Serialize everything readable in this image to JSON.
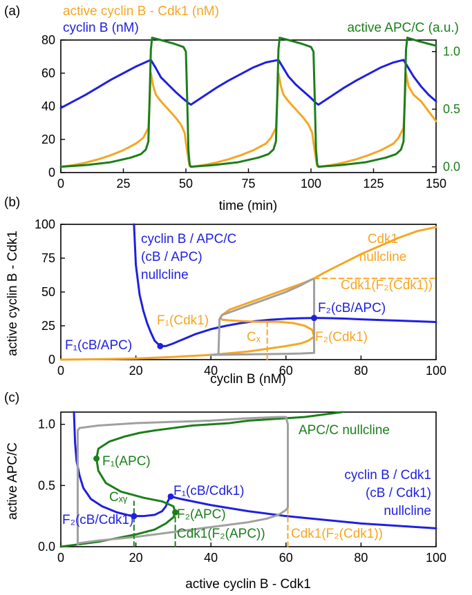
{
  "colors": {
    "blue": "#1f1fe0",
    "orange": "#f5a623",
    "green": "#1a7f1a",
    "gray": "#a0a0a0",
    "axis": "#000000"
  },
  "chart_data": [
    {
      "panel": "(a)",
      "type": "line",
      "xlabel": "time (min)",
      "ylabel_left": "",
      "ylabel_right": "",
      "xlim": [
        0,
        150
      ],
      "ylim_left": [
        0,
        80
      ],
      "ylim_right": [
        -0.05,
        1.1
      ],
      "xticks": [
        "0",
        "25",
        "50",
        "75",
        "100",
        "125",
        "150"
      ],
      "yticks_left": [
        "0",
        "20",
        "40",
        "60",
        "80"
      ],
      "yticks_right": [
        "0.0",
        "0.5",
        "1.0"
      ],
      "legend": [
        "active cyclin B - Cdk1 (nM)",
        "cyclin B (nM)",
        "active APC/C (a.u.)"
      ],
      "series": [
        {
          "name": "cyclin B (nM)",
          "axis": "left",
          "color": "blue",
          "x": [
            0,
            5,
            10,
            15,
            20,
            25,
            30,
            36,
            38,
            40,
            43,
            46,
            49,
            51,
            52,
            57,
            62,
            67,
            72,
            77,
            82,
            87,
            89,
            91,
            94,
            97,
            100,
            102,
            103,
            108,
            113,
            118,
            123,
            128,
            133,
            137,
            139,
            141,
            144,
            147,
            150
          ],
          "y": [
            39,
            43,
            47,
            51.5,
            56,
            60,
            64,
            68,
            63,
            57.5,
            53,
            48.5,
            44.5,
            42,
            41,
            46,
            51,
            55.5,
            59.5,
            63.5,
            66.5,
            68,
            63,
            58,
            53,
            49,
            45,
            42,
            41,
            46,
            51,
            55.5,
            59.5,
            63.5,
            66.5,
            68,
            63,
            58,
            52,
            47,
            43
          ]
        },
        {
          "name": "active cyclin B - Cdk1 (nM)",
          "axis": "left",
          "color": "orange",
          "x": [
            0,
            5,
            10,
            15,
            20,
            25,
            30,
            33,
            35,
            36,
            37,
            38,
            40,
            43,
            46,
            48,
            49.5,
            50,
            51,
            51.5,
            52,
            57,
            62,
            67,
            72,
            77,
            82,
            84,
            86,
            87,
            88,
            89,
            91,
            94,
            97,
            99,
            100.5,
            101,
            102,
            102.5,
            103,
            108,
            113,
            118,
            123,
            128,
            133,
            135,
            137,
            138,
            139,
            141,
            144,
            147,
            150
          ],
          "y": [
            3.5,
            4.5,
            6,
            8,
            10.5,
            13.5,
            17.5,
            21,
            27,
            60,
            52,
            47,
            43,
            38,
            33,
            29,
            24,
            18,
            8,
            4,
            3.5,
            4.5,
            6,
            8,
            10.5,
            13.5,
            17.5,
            21,
            27,
            60,
            52,
            47,
            43,
            38,
            33,
            29,
            24,
            18,
            8,
            4,
            3.5,
            4.5,
            6,
            8,
            10.5,
            13.5,
            17.5,
            21,
            27,
            60,
            52,
            47,
            43,
            37,
            31
          ]
        },
        {
          "name": "active APC/C (a.u.)",
          "axis": "right",
          "color": "green",
          "x": [
            0,
            10,
            20,
            28,
            32,
            34,
            35,
            35.5,
            36,
            36.5,
            40,
            45,
            49,
            50,
            50.5,
            51,
            51.5,
            52,
            61,
            71,
            79,
            83,
            85,
            86,
            86.5,
            87,
            87.5,
            91,
            96,
            100,
            101,
            101.5,
            102,
            102.5,
            103,
            112,
            122,
            130,
            134,
            136,
            137,
            137.5,
            138,
            138.5,
            143,
            150
          ],
          "y": [
            0.0,
            0.015,
            0.04,
            0.08,
            0.11,
            0.15,
            0.22,
            0.6,
            1.02,
            1.12,
            1.1,
            1.07,
            1.04,
            1.0,
            0.6,
            0.15,
            0.02,
            0.0,
            0.015,
            0.04,
            0.08,
            0.11,
            0.15,
            0.22,
            0.6,
            1.02,
            1.12,
            1.1,
            1.07,
            1.04,
            1.0,
            0.6,
            0.15,
            0.02,
            0.0,
            0.015,
            0.04,
            0.08,
            0.11,
            0.15,
            0.22,
            0.6,
            1.02,
            1.12,
            1.09,
            1.05
          ]
        }
      ]
    },
    {
      "panel": "(b)",
      "type": "line",
      "xlabel": "cyclin B (nM)",
      "ylabel": "active cyclin B - Cdk1",
      "xlim": [
        0,
        100
      ],
      "ylim": [
        0,
        100
      ],
      "xticks": [
        "0",
        "20",
        "40",
        "60",
        "80",
        "100"
      ],
      "yticks": [
        "0",
        "25",
        "50",
        "75",
        "100"
      ],
      "series": [
        {
          "name": "cB/APC nullcline",
          "color": "blue",
          "x": [
            19.5,
            20,
            21,
            22,
            23,
            24,
            25,
            26.5,
            28,
            30,
            33,
            36,
            40,
            44,
            48,
            52,
            56,
            60,
            64,
            68,
            72,
            76,
            80,
            85,
            90,
            95,
            100
          ],
          "y": [
            100,
            70,
            48,
            36,
            27,
            20,
            14,
            10,
            10,
            12,
            15.5,
            19,
            22.5,
            25,
            27,
            28.5,
            29.5,
            30.2,
            30.6,
            30.8,
            30.6,
            30.3,
            29.8,
            29.3,
            28.8,
            28.3,
            27.8
          ]
        },
        {
          "name": "Cdk1 nullcline",
          "color": "orange",
          "x": [
            0,
            10,
            20,
            30,
            40,
            42,
            43,
            46,
            50,
            55,
            60,
            64,
            66,
            67.5,
            67,
            65,
            62,
            58,
            55,
            52,
            48,
            45,
            43,
            42.5,
            43,
            45,
            50,
            55,
            60,
            65,
            67.5,
            70,
            75,
            80,
            85,
            90,
            95,
            100
          ],
          "y": [
            0,
            0.3,
            0.8,
            2,
            3.5,
            4,
            4.3,
            5,
            6,
            8,
            10,
            12,
            14,
            17,
            22,
            25,
            27,
            28,
            28,
            28,
            28.5,
            29,
            29.5,
            31,
            33,
            37,
            42,
            47,
            52,
            57,
            60,
            64,
            71,
            78,
            84,
            90,
            95,
            98
          ]
        },
        {
          "name": "gray trajectory",
          "color": "gray",
          "x": [
            40,
            42,
            42.3,
            43,
            46,
            50,
            55,
            60,
            64,
            66,
            67.5,
            67.5,
            67.5,
            64,
            60,
            55,
            50,
            45,
            42.5,
            41.5,
            41,
            40
          ],
          "y": [
            3.5,
            3.8,
            30,
            33,
            36,
            40,
            45,
            50,
            55,
            58,
            60,
            45,
            5,
            4.5,
            4.3,
            4.1,
            3.9,
            3.7,
            3.6,
            3.6,
            3.5,
            3.5
          ]
        },
        {
          "name": "Cx dashed",
          "color": "orange",
          "dashed": true,
          "x": [
            55,
            55
          ],
          "y": [
            0,
            28
          ]
        },
        {
          "name": "Cdk1(F2(Cdk1)) dashed",
          "color": "orange",
          "dashed": true,
          "x": [
            67.5,
            100
          ],
          "y": [
            60,
            60
          ]
        }
      ],
      "points": [
        {
          "label": "F₁(cB/APC)",
          "x": 26.5,
          "y": 10,
          "color": "blue"
        },
        {
          "label": "F₂(cB/APC)",
          "x": 67.5,
          "y": 30.8,
          "color": "blue"
        }
      ],
      "annotations": [
        "cyclin B / APC/C",
        "(cB / APC)",
        "nullcline",
        "Cdk1",
        "nullcline",
        "Cdk1(F₂(Cdk1))",
        "F₂(cB/APC)",
        "F₁(Cdk1)",
        "Cₓ",
        "F₂(Cdk1)",
        "F₁(cB/APC)"
      ]
    },
    {
      "panel": "(c)",
      "type": "line",
      "xlabel": "active cyclin B - Cdk1",
      "ylabel": "active APC/C",
      "xlim": [
        0,
        100
      ],
      "ylim": [
        0,
        1.1
      ],
      "xticks": [
        "0",
        "20",
        "40",
        "60",
        "80",
        "100"
      ],
      "yticks": [
        "0.0",
        "0.5",
        "1.0"
      ],
      "series": [
        {
          "name": "cyclin B / Cdk1 nullcline",
          "color": "blue",
          "x": [
            3.5,
            3.8,
            4.2,
            5,
            6,
            8,
            11,
            15,
            19,
            22,
            25,
            27,
            28,
            28.5,
            29,
            29.3,
            32,
            40,
            50,
            60,
            70,
            80,
            90,
            100
          ],
          "y": [
            1.1,
            0.85,
            0.7,
            0.58,
            0.48,
            0.39,
            0.33,
            0.28,
            0.25,
            0.25,
            0.26,
            0.29,
            0.33,
            0.37,
            0.4,
            0.41,
            0.39,
            0.34,
            0.29,
            0.25,
            0.22,
            0.19,
            0.17,
            0.15
          ]
        },
        {
          "name": "APC/C nullcline",
          "color": "green",
          "x": [
            0,
            5,
            10,
            15,
            20,
            25,
            28,
            30,
            30.5,
            30,
            27,
            22,
            16,
            12,
            10,
            9.5,
            10,
            13,
            17,
            21,
            25,
            30,
            35,
            40,
            45,
            50,
            55,
            60,
            65,
            70,
            75
          ],
          "y": [
            0,
            0.02,
            0.04,
            0.07,
            0.1,
            0.14,
            0.19,
            0.24,
            0.28,
            0.33,
            0.37,
            0.4,
            0.45,
            0.52,
            0.62,
            0.72,
            0.8,
            0.86,
            0.9,
            0.93,
            0.95,
            0.97,
            0.99,
            1.0,
            1.01,
            1.03,
            1.04,
            1.05,
            1.06,
            1.08,
            1.1
          ]
        },
        {
          "name": "gray trajectory",
          "color": "gray",
          "x": [
            4.5,
            4.5,
            5,
            10,
            20,
            30,
            40,
            50,
            58,
            60,
            60.5,
            60.5,
            60,
            58,
            55,
            50,
            40,
            30,
            20,
            10,
            5,
            4.5
          ],
          "y": [
            0.02,
            0.95,
            0.97,
            0.99,
            1.01,
            1.02,
            1.03,
            1.05,
            1.06,
            1.06,
            1.0,
            0.32,
            0.3,
            0.26,
            0.23,
            0.2,
            0.16,
            0.12,
            0.08,
            0.05,
            0.03,
            0.02
          ]
        },
        {
          "name": "Cxy dashed",
          "color": "green",
          "dashed": true,
          "x": [
            19.5,
            19.5
          ],
          "y": [
            0,
            0.37
          ]
        },
        {
          "name": "Cdk1(F2(APC)) dashed",
          "color": "green",
          "dashed": true,
          "x": [
            30.5,
            30.5
          ],
          "y": [
            0,
            0.28
          ]
        },
        {
          "name": "Cdk1(F2(Cdk1)) dashed",
          "color": "orange",
          "dashed": true,
          "x": [
            60.5,
            60.5
          ],
          "y": [
            0,
            0.32
          ]
        }
      ],
      "points": [
        {
          "label": "F₁(APC)",
          "x": 9.5,
          "y": 0.72,
          "color": "green"
        },
        {
          "label": "F₂(APC)",
          "x": 30.5,
          "y": 0.28,
          "color": "green"
        },
        {
          "label": "F₁(cB/Cdk1)",
          "x": 29.3,
          "y": 0.41,
          "color": "blue"
        },
        {
          "label": "F₂(cB/Cdk1)",
          "x": 19.5,
          "y": 0.25,
          "color": "blue"
        }
      ],
      "annotations": [
        "APC/C nullcline",
        "F₁(APC)",
        "F₁(cB/Cdk1)",
        "Cₓᵧ",
        "cyclin B  / Cdk1",
        "(cB / Cdk1)",
        "nullcline",
        "F₂(cB/Cdk1)",
        "F₂(APC)",
        "Cdk1(F₂(APC))",
        "Cdk1(F₂(Cdk1))"
      ]
    }
  ]
}
